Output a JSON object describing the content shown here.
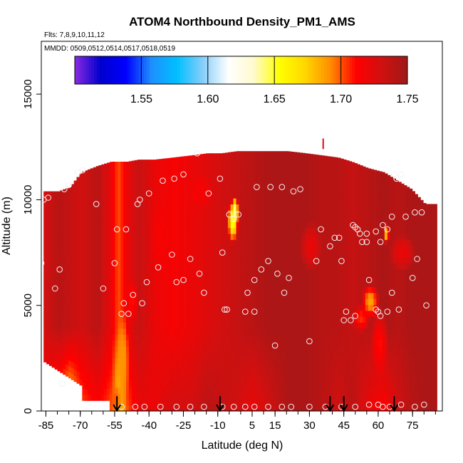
{
  "chart_data": {
    "type": "heatmap",
    "title": "ATOM4 Northbound Density_PM1_AMS",
    "flights_label": "Flts: 7,8,9,10,11,12",
    "dates_label": "MMDD: 0509,0512,0514,0517,0518,0519",
    "xlabel": "Latitude (deg N)",
    "ylabel": "Altitude (m)",
    "xlim": [
      -87,
      88
    ],
    "ylim": [
      0,
      17500
    ],
    "x_ticks": [
      -85,
      -70,
      -55,
      -40,
      -25,
      -10,
      5,
      15,
      30,
      45,
      60,
      75
    ],
    "x_tick_labels": [
      "-85",
      "-70",
      "-55",
      "-40",
      "-25",
      "-10",
      "5",
      "15",
      "30",
      "45",
      "60",
      "75"
    ],
    "y_ticks": [
      0,
      5000,
      10000,
      15000
    ],
    "y_tick_labels": [
      "0",
      "5000",
      "10000",
      "15000"
    ],
    "colorbar": {
      "range": [
        1.5,
        1.75
      ],
      "ticks": [
        1.55,
        1.6,
        1.65,
        1.7,
        1.75
      ],
      "tick_labels": [
        "1.55",
        "1.60",
        "1.65",
        "1.70",
        "1.75"
      ],
      "colors": [
        "#8a2be2",
        "#0000cd",
        "#0000ff",
        "#1e90ff",
        "#00bfff",
        "#87cefa",
        "#ffffff",
        "#fffacd",
        "#ffff00",
        "#ffd700",
        "#ff8c00",
        "#ff0000",
        "#d01010",
        "#a01818"
      ]
    },
    "arrows_lat": [
      -54,
      -9,
      39,
      45,
      67
    ],
    "profiles": [
      {
        "lat": -86,
        "top": 10400,
        "base": 1.73,
        "low": 1.71
      },
      {
        "lat": -80,
        "top": 10400,
        "base": 1.74,
        "low": 1.69
      },
      {
        "lat": -75,
        "top": 10600,
        "base": 1.735,
        "low": 1.67
      },
      {
        "lat": -70,
        "top": 11300,
        "base": 1.73,
        "low": 1.7
      },
      {
        "lat": -63,
        "top": 11600,
        "base": 1.74,
        "low": 1.71
      },
      {
        "lat": -57,
        "top": 11800,
        "base": 1.72,
        "low": 1.7
      },
      {
        "lat": -54,
        "top": 11800,
        "base": 1.7,
        "low": 1.67
      },
      {
        "lat": -50,
        "top": 11800,
        "base": 1.72,
        "low": 1.7
      },
      {
        "lat": -45,
        "top": 11900,
        "base": 1.735,
        "low": 1.72
      },
      {
        "lat": -38,
        "top": 11900,
        "base": 1.72,
        "low": 1.72
      },
      {
        "lat": -30,
        "top": 12000,
        "base": 1.715,
        "low": 1.73
      },
      {
        "lat": -22,
        "top": 12100,
        "base": 1.72,
        "low": 1.73
      },
      {
        "lat": -15,
        "top": 12200,
        "base": 1.725,
        "low": 1.74
      },
      {
        "lat": -9,
        "top": 12200,
        "base": 1.73,
        "low": 1.735
      },
      {
        "lat": -2,
        "top": 12300,
        "base": 1.735,
        "low": 1.73
      },
      {
        "lat": 5,
        "top": 12300,
        "base": 1.74,
        "low": 1.72
      },
      {
        "lat": 12,
        "top": 12300,
        "base": 1.745,
        "low": 1.73
      },
      {
        "lat": 20,
        "top": 12300,
        "base": 1.745,
        "low": 1.745
      },
      {
        "lat": 28,
        "top": 12200,
        "base": 1.745,
        "low": 1.745
      },
      {
        "lat": 35,
        "top": 12100,
        "base": 1.74,
        "low": 1.74
      },
      {
        "lat": 42,
        "top": 12000,
        "base": 1.74,
        "low": 1.73
      },
      {
        "lat": 48,
        "top": 11800,
        "base": 1.735,
        "low": 1.74
      },
      {
        "lat": 55,
        "top": 11500,
        "base": 1.74,
        "low": 1.72
      },
      {
        "lat": 62,
        "top": 11300,
        "base": 1.745,
        "low": 1.71
      },
      {
        "lat": 68,
        "top": 10900,
        "base": 1.74,
        "low": 1.73
      },
      {
        "lat": 74,
        "top": 10500,
        "base": 1.745,
        "low": 1.74
      },
      {
        "lat": 80,
        "top": 9800,
        "base": 1.745,
        "low": 1.745
      },
      {
        "lat": 84,
        "top": 9800,
        "base": 1.745,
        "low": 1.745
      }
    ],
    "anomalies": [
      {
        "lat": -52,
        "alt": 2500,
        "dlat": 3,
        "dalt": 2500,
        "value": 1.69
      },
      {
        "lat": -48,
        "alt": 5200,
        "dlat": 3,
        "dalt": 1200,
        "value": 1.71
      },
      {
        "lat": -36,
        "alt": 8200,
        "dlat": 4,
        "dalt": 1800,
        "value": 1.715
      },
      {
        "lat": -18,
        "alt": 10400,
        "dlat": 6,
        "dalt": 900,
        "value": 1.715
      },
      {
        "lat": -4,
        "alt": 9000,
        "dlat": 2.5,
        "dalt": 1100,
        "value": 1.65
      },
      {
        "lat": -3,
        "alt": 9500,
        "dlat": 1.5,
        "dalt": 700,
        "value": 1.64
      },
      {
        "lat": 56,
        "alt": 5200,
        "dlat": 4,
        "dalt": 900,
        "value": 1.685
      },
      {
        "lat": 52,
        "alt": 4400,
        "dlat": 4,
        "dalt": 700,
        "value": 1.705
      },
      {
        "lat": 63,
        "alt": 8400,
        "dlat": 1.5,
        "dalt": 500,
        "value": 1.675
      },
      {
        "lat": 70,
        "alt": 7500,
        "dlat": 6,
        "dalt": 900,
        "value": 1.72
      },
      {
        "lat": 30,
        "alt": 7800,
        "dlat": 5,
        "dalt": 1200,
        "value": 1.72
      },
      {
        "lat": -55,
        "alt": 500,
        "dlat": 3,
        "dalt": 900,
        "value": 1.7
      },
      {
        "lat": 60,
        "alt": 3200,
        "dlat": 4,
        "dalt": 1800,
        "value": 1.71
      }
    ],
    "observations": [
      [
        -87,
        7000
      ],
      [
        -86,
        10000
      ],
      [
        -84,
        10100
      ],
      [
        -81,
        5800
      ],
      [
        -79,
        6700
      ],
      [
        -78,
        1300
      ],
      [
        -77,
        10500
      ],
      [
        -75,
        10700
      ],
      [
        -71,
        11300
      ],
      [
        -69,
        11400
      ],
      [
        -63,
        9800
      ],
      [
        -60,
        5800
      ],
      [
        -55,
        7000
      ],
      [
        -54,
        8600
      ],
      [
        -52,
        4600
      ],
      [
        -51,
        5100
      ],
      [
        -50,
        8600
      ],
      [
        -49,
        4600
      ],
      [
        -47,
        5500
      ],
      [
        -45,
        9800
      ],
      [
        -44,
        10000
      ],
      [
        -43,
        5100
      ],
      [
        -41,
        6100
      ],
      [
        -40,
        10300
      ],
      [
        -36,
        6800
      ],
      [
        -34,
        10900
      ],
      [
        -30,
        7400
      ],
      [
        -29,
        11000
      ],
      [
        -28,
        6100
      ],
      [
        -25,
        6200
      ],
      [
        -25,
        11200
      ],
      [
        -22,
        7200
      ],
      [
        -19,
        12200
      ],
      [
        -18,
        6500
      ],
      [
        -16,
        5600
      ],
      [
        -14,
        10300
      ],
      [
        -9,
        11000
      ],
      [
        -8,
        7500
      ],
      [
        -7,
        4800
      ],
      [
        -6,
        4800
      ],
      [
        -5,
        9300
      ],
      [
        -3,
        9100
      ],
      [
        -1,
        9300
      ],
      [
        2,
        4700
      ],
      [
        3,
        5600
      ],
      [
        6,
        4700
      ],
      [
        6,
        6200
      ],
      [
        7,
        10600
      ],
      [
        9,
        6700
      ],
      [
        12,
        7100
      ],
      [
        13,
        10600
      ],
      [
        15,
        3100
      ],
      [
        16,
        6500
      ],
      [
        18,
        10600
      ],
      [
        19,
        5600
      ],
      [
        21,
        6300
      ],
      [
        23,
        10400
      ],
      [
        26,
        10500
      ],
      [
        30,
        3300
      ],
      [
        33,
        7100
      ],
      [
        35,
        8600
      ],
      [
        39,
        7800
      ],
      [
        41,
        8200
      ],
      [
        43,
        8200
      ],
      [
        44,
        7100
      ],
      [
        45,
        4300
      ],
      [
        46,
        4700
      ],
      [
        48,
        4300
      ],
      [
        49,
        8800
      ],
      [
        50,
        8700
      ],
      [
        50,
        4500
      ],
      [
        51,
        8600
      ],
      [
        52,
        8400
      ],
      [
        53,
        8000
      ],
      [
        55,
        8400
      ],
      [
        55,
        8000
      ],
      [
        56,
        6200
      ],
      [
        59,
        4800
      ],
      [
        59,
        8500
      ],
      [
        60,
        4700
      ],
      [
        61,
        8000
      ],
      [
        61,
        4500
      ],
      [
        62,
        8800
      ],
      [
        64,
        8600
      ],
      [
        64,
        4700
      ],
      [
        66,
        5600
      ],
      [
        66,
        9200
      ],
      [
        67,
        11200
      ],
      [
        68,
        11000
      ],
      [
        69,
        4800
      ],
      [
        70,
        11200
      ],
      [
        72,
        9200
      ],
      [
        75,
        6300
      ],
      [
        76,
        9400
      ],
      [
        77,
        7200
      ],
      [
        79,
        9400
      ],
      [
        81,
        5000
      ],
      [
        -52,
        200
      ],
      [
        -46,
        200
      ],
      [
        -42,
        200
      ],
      [
        -35,
        200
      ],
      [
        -28,
        200
      ],
      [
        -22,
        200
      ],
      [
        -16,
        200
      ],
      [
        -8,
        200
      ],
      [
        -3,
        200
      ],
      [
        2,
        200
      ],
      [
        6,
        200
      ],
      [
        12,
        200
      ],
      [
        18,
        200
      ],
      [
        22,
        200
      ],
      [
        30,
        200
      ],
      [
        37,
        200
      ],
      [
        44,
        200
      ],
      [
        50,
        200
      ],
      [
        56,
        300
      ],
      [
        60,
        300
      ],
      [
        62,
        200
      ],
      [
        65,
        200
      ],
      [
        70,
        300
      ],
      [
        76,
        200
      ],
      [
        80,
        300
      ]
    ]
  }
}
